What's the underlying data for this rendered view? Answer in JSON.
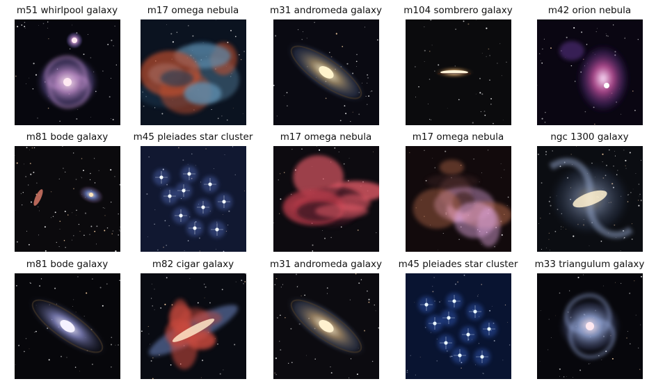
{
  "tiles": [
    {
      "caption": "m51 whirlpool galaxy",
      "kind": "spiral2",
      "colors": {
        "bg": "#07070e",
        "core": "#ffe9f2",
        "mid": "#b98ac7",
        "edge": "#5b4c8e"
      }
    },
    {
      "caption": "m17 omega nebula",
      "kind": "nebula",
      "colors": {
        "bg": "#0b1320",
        "core": "#5f8fb0",
        "mid": "#c2502d",
        "edge": "#1f3a55"
      }
    },
    {
      "caption": "m31 andromeda galaxy",
      "kind": "elliptic",
      "colors": {
        "bg": "#0a0a12",
        "core": "#fff3cc",
        "mid": "#9d8a6a",
        "edge": "#3d4a6a"
      }
    },
    {
      "caption": "m104 sombrero galaxy",
      "kind": "sombrero",
      "colors": {
        "bg": "#0b0b0d",
        "core": "#fff4d8",
        "mid": "#b08a5a",
        "edge": "#3a2a1a"
      }
    },
    {
      "caption": "m42 orion nebula",
      "kind": "orion",
      "colors": {
        "bg": "#0a0612",
        "core": "#ffe6ff",
        "mid": "#c24f9b",
        "edge": "#4c2a72"
      }
    },
    {
      "caption": "m81 bode galaxy",
      "kind": "twin",
      "colors": {
        "bg": "#0b0a0d",
        "core": "#ffe7bd",
        "mid": "#6b7fc2",
        "edge": "#4a3a5a"
      }
    },
    {
      "caption": "m45 pleiades star cluster",
      "kind": "pleiades",
      "colors": {
        "bg": "#0a0d18",
        "core": "#f4fbff",
        "mid": "#5e7bd8",
        "edge": "#263a7a"
      }
    },
    {
      "caption": "m17 omega nebula",
      "kind": "nebula",
      "colors": {
        "bg": "#0d0b10",
        "core": "#e05a66",
        "mid": "#b43a4a",
        "edge": "#3a1520"
      }
    },
    {
      "caption": "m17 omega nebula",
      "kind": "nebula",
      "colors": {
        "bg": "#120a0c",
        "core": "#d9a0d6",
        "mid": "#b86a4c",
        "edge": "#4a2a2a"
      }
    },
    {
      "caption": "ngc 1300 galaxy",
      "kind": "barred",
      "colors": {
        "bg": "#0b0d12",
        "core": "#fff1d0",
        "mid": "#8fa0c4",
        "edge": "#3a4a6a"
      }
    },
    {
      "caption": "m81 bode galaxy",
      "kind": "elliptic",
      "colors": {
        "bg": "#07070b",
        "core": "#f5f2ff",
        "mid": "#7d7fb8",
        "edge": "#2a2d45"
      }
    },
    {
      "caption": "m82 cigar galaxy",
      "kind": "cigar",
      "colors": {
        "bg": "#090b12",
        "core": "#ffe6c8",
        "mid": "#c84a3c",
        "edge": "#5a6ea0"
      }
    },
    {
      "caption": "m31 andromeda galaxy",
      "kind": "elliptic",
      "colors": {
        "bg": "#0c0b10",
        "core": "#fff1cf",
        "mid": "#a28a6a",
        "edge": "#45506b"
      }
    },
    {
      "caption": "m45 pleiades star cluster",
      "kind": "pleiades",
      "colors": {
        "bg": "#050a18",
        "core": "#e9f6ff",
        "mid": "#3e6de0",
        "edge": "#18327a"
      }
    },
    {
      "caption": "m33 triangulum galaxy",
      "kind": "spiral",
      "colors": {
        "bg": "#07070c",
        "core": "#ffe8f0",
        "mid": "#8ea0d0",
        "edge": "#3d4466"
      }
    }
  ]
}
